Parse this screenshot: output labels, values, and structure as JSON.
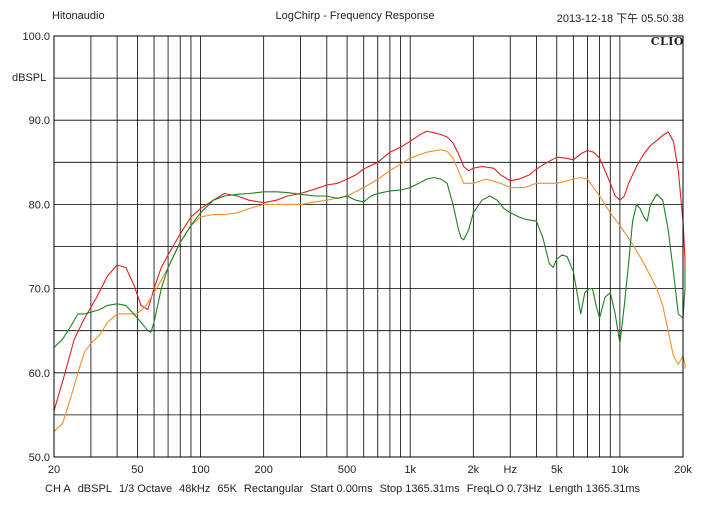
{
  "header": {
    "left": "Hitonaudio",
    "center": "LogChirp - Frequency Response",
    "right": "2013-12-18 下午 05.50.38",
    "logo": "CLIO"
  },
  "footer": {
    "items": [
      "CH A",
      "dBSPL",
      "1/3 Octave",
      "48kHz",
      "65K",
      "Rectangular",
      "Start 0.00ms",
      "Stop 1365.31ms",
      "FreqLO 0.73Hz",
      "Length 1365.31ms"
    ]
  },
  "chart_data": {
    "type": "line",
    "title": "LogChirp - Frequency Response",
    "xlabel": "",
    "ylabel": "dBSPL",
    "xscale": "log",
    "xlim": [
      20,
      20000
    ],
    "ylim": [
      50,
      100
    ],
    "grid": true,
    "yticks": [
      {
        "value": 100,
        "label": "100.0"
      },
      {
        "value": 90,
        "label": "90.0"
      },
      {
        "value": 80,
        "label": "80.0"
      },
      {
        "value": 70,
        "label": "70.0"
      },
      {
        "value": 60,
        "label": "60.0"
      },
      {
        "value": 50,
        "label": "50.0"
      }
    ],
    "xticks": [
      {
        "value": 20,
        "label": "20"
      },
      {
        "value": 50,
        "label": "50"
      },
      {
        "value": 100,
        "label": "100"
      },
      {
        "value": 200,
        "label": "200"
      },
      {
        "value": 500,
        "label": "500"
      },
      {
        "value": 1000,
        "label": "1k"
      },
      {
        "value": 2000,
        "label": "2k"
      },
      {
        "value": 3000,
        "label": "Hz"
      },
      {
        "value": 5000,
        "label": "5k"
      },
      {
        "value": 10000,
        "label": "10k"
      },
      {
        "value": 20000,
        "label": "20k"
      }
    ],
    "colors": {
      "background": "#ffffff",
      "grid": "#000000",
      "axis": "#000000"
    },
    "series": [
      {
        "color": "#e02020",
        "points": [
          [
            20,
            55.5
          ],
          [
            22,
            59
          ],
          [
            25,
            64
          ],
          [
            28,
            66.5
          ],
          [
            32,
            69
          ],
          [
            36,
            71.5
          ],
          [
            40,
            72.8
          ],
          [
            44,
            72.5
          ],
          [
            48,
            70.5
          ],
          [
            52,
            68
          ],
          [
            56,
            67.5
          ],
          [
            60,
            70
          ],
          [
            65,
            72.5
          ],
          [
            70,
            74
          ],
          [
            80,
            76.5
          ],
          [
            90,
            78.5
          ],
          [
            100,
            79.5
          ],
          [
            115,
            80.5
          ],
          [
            130,
            81.3
          ],
          [
            150,
            81
          ],
          [
            170,
            80.5
          ],
          [
            200,
            80.2
          ],
          [
            230,
            80.5
          ],
          [
            260,
            81
          ],
          [
            300,
            81.3
          ],
          [
            350,
            81.8
          ],
          [
            400,
            82.3
          ],
          [
            450,
            82.5
          ],
          [
            500,
            83
          ],
          [
            550,
            83.5
          ],
          [
            600,
            84.2
          ],
          [
            700,
            85
          ],
          [
            800,
            86.2
          ],
          [
            900,
            86.8
          ],
          [
            1000,
            87.5
          ],
          [
            1100,
            88.2
          ],
          [
            1200,
            88.7
          ],
          [
            1300,
            88.5
          ],
          [
            1400,
            88.3
          ],
          [
            1500,
            88
          ],
          [
            1600,
            87.3
          ],
          [
            1700,
            86
          ],
          [
            1800,
            84.5
          ],
          [
            1900,
            84
          ],
          [
            2000,
            84.3
          ],
          [
            2200,
            84.5
          ],
          [
            2500,
            84.3
          ],
          [
            2700,
            83.5
          ],
          [
            3000,
            82.8
          ],
          [
            3300,
            83
          ],
          [
            3700,
            83.5
          ],
          [
            4000,
            84.2
          ],
          [
            4500,
            85
          ],
          [
            5000,
            85.6
          ],
          [
            5500,
            85.5
          ],
          [
            6000,
            85.3
          ],
          [
            6500,
            86
          ],
          [
            7000,
            86.4
          ],
          [
            7500,
            86.2
          ],
          [
            8000,
            85.5
          ],
          [
            8500,
            84
          ],
          [
            9000,
            82.5
          ],
          [
            9500,
            81
          ],
          [
            10000,
            80.5
          ],
          [
            10500,
            81
          ],
          [
            11000,
            82.5
          ],
          [
            12000,
            84.5
          ],
          [
            13000,
            86
          ],
          [
            14000,
            87
          ],
          [
            15000,
            87.6
          ],
          [
            16000,
            88.2
          ],
          [
            17000,
            88.6
          ],
          [
            18000,
            87.5
          ],
          [
            19000,
            84
          ],
          [
            20000,
            78
          ],
          [
            21000,
            73.5
          ],
          [
            22000,
            72.5
          ]
        ]
      },
      {
        "color": "#f09030",
        "points": [
          [
            20,
            53
          ],
          [
            22,
            54
          ],
          [
            24,
            57
          ],
          [
            26,
            60
          ],
          [
            28,
            62.5
          ],
          [
            30,
            63.5
          ],
          [
            33,
            64.5
          ],
          [
            36,
            66
          ],
          [
            40,
            67
          ],
          [
            45,
            67
          ],
          [
            50,
            67
          ],
          [
            55,
            68
          ],
          [
            60,
            69.5
          ],
          [
            65,
            71
          ],
          [
            70,
            72.5
          ],
          [
            80,
            75.5
          ],
          [
            90,
            77.5
          ],
          [
            100,
            78.5
          ],
          [
            115,
            78.8
          ],
          [
            130,
            78.8
          ],
          [
            150,
            79
          ],
          [
            170,
            79.5
          ],
          [
            200,
            80
          ],
          [
            250,
            80
          ],
          [
            300,
            80
          ],
          [
            350,
            80.3
          ],
          [
            400,
            80.5
          ],
          [
            500,
            81
          ],
          [
            600,
            82
          ],
          [
            700,
            83
          ],
          [
            800,
            84
          ],
          [
            900,
            84.8
          ],
          [
            1000,
            85.5
          ],
          [
            1200,
            86.2
          ],
          [
            1400,
            86.5
          ],
          [
            1500,
            86.3
          ],
          [
            1600,
            85.5
          ],
          [
            1700,
            84
          ],
          [
            1800,
            82.5
          ],
          [
            2000,
            82.5
          ],
          [
            2300,
            83
          ],
          [
            2700,
            82.5
          ],
          [
            3000,
            82
          ],
          [
            3500,
            82
          ],
          [
            4000,
            82.5
          ],
          [
            5000,
            82.5
          ],
          [
            6000,
            83
          ],
          [
            6500,
            83.2
          ],
          [
            7000,
            83
          ],
          [
            8000,
            81
          ],
          [
            9000,
            79
          ],
          [
            10000,
            77.5
          ],
          [
            11000,
            76
          ],
          [
            12000,
            74.5
          ],
          [
            13000,
            73
          ],
          [
            14000,
            71.5
          ],
          [
            15000,
            70
          ],
          [
            16000,
            68
          ],
          [
            17000,
            65
          ],
          [
            18000,
            62
          ],
          [
            19000,
            61
          ],
          [
            20000,
            62
          ],
          [
            21000,
            61
          ],
          [
            22000,
            60.5
          ]
        ]
      },
      {
        "color": "#208020",
        "points": [
          [
            20,
            63
          ],
          [
            22,
            64
          ],
          [
            24,
            65.5
          ],
          [
            26,
            67
          ],
          [
            28,
            67
          ],
          [
            30,
            67.2
          ],
          [
            33,
            67.5
          ],
          [
            36,
            68
          ],
          [
            40,
            68.2
          ],
          [
            44,
            68
          ],
          [
            48,
            67
          ],
          [
            52,
            66
          ],
          [
            56,
            65
          ],
          [
            58,
            64.8
          ],
          [
            60,
            66
          ],
          [
            65,
            70
          ],
          [
            70,
            72.5
          ],
          [
            80,
            75.5
          ],
          [
            90,
            77.5
          ],
          [
            100,
            79
          ],
          [
            115,
            80.5
          ],
          [
            130,
            81
          ],
          [
            150,
            81.2
          ],
          [
            170,
            81.3
          ],
          [
            200,
            81.5
          ],
          [
            230,
            81.5
          ],
          [
            260,
            81.4
          ],
          [
            300,
            81.2
          ],
          [
            350,
            81
          ],
          [
            400,
            81
          ],
          [
            450,
            80.7
          ],
          [
            500,
            81
          ],
          [
            550,
            80.5
          ],
          [
            600,
            80.3
          ],
          [
            650,
            81
          ],
          [
            700,
            81.3
          ],
          [
            800,
            81.6
          ],
          [
            900,
            81.7
          ],
          [
            1000,
            82
          ],
          [
            1100,
            82.5
          ],
          [
            1200,
            83
          ],
          [
            1300,
            83.2
          ],
          [
            1400,
            83
          ],
          [
            1500,
            82.5
          ],
          [
            1600,
            80
          ],
          [
            1700,
            77
          ],
          [
            1750,
            76
          ],
          [
            1800,
            75.8
          ],
          [
            1900,
            77
          ],
          [
            2000,
            79
          ],
          [
            2200,
            80.5
          ],
          [
            2400,
            81
          ],
          [
            2600,
            80.5
          ],
          [
            2800,
            79.5
          ],
          [
            3000,
            79
          ],
          [
            3300,
            78.5
          ],
          [
            3600,
            78.2
          ],
          [
            4000,
            78
          ],
          [
            4300,
            76
          ],
          [
            4600,
            73
          ],
          [
            4800,
            72.5
          ],
          [
            5000,
            73.5
          ],
          [
            5300,
            74
          ],
          [
            5600,
            73.8
          ],
          [
            6000,
            72
          ],
          [
            6300,
            69
          ],
          [
            6500,
            67
          ],
          [
            6800,
            69.5
          ],
          [
            7100,
            70
          ],
          [
            7400,
            70
          ],
          [
            7700,
            68
          ],
          [
            8000,
            66.5
          ],
          [
            8500,
            69
          ],
          [
            9000,
            69.5
          ],
          [
            9500,
            67
          ],
          [
            10000,
            63.5
          ],
          [
            10500,
            68
          ],
          [
            11000,
            73
          ],
          [
            11500,
            78
          ],
          [
            12000,
            80
          ],
          [
            12500,
            79.5
          ],
          [
            13000,
            78.5
          ],
          [
            13500,
            78
          ],
          [
            14000,
            80
          ],
          [
            15000,
            81.2
          ],
          [
            16000,
            80.5
          ],
          [
            17000,
            77
          ],
          [
            18000,
            72
          ],
          [
            19000,
            67
          ],
          [
            20000,
            66.5
          ],
          [
            21000,
            70
          ],
          [
            22000,
            72.5
          ]
        ]
      }
    ]
  }
}
